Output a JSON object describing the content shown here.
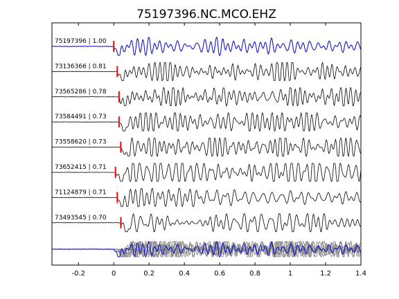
{
  "chart_data": {
    "type": "line",
    "title": "75197396.NC.MCO.EHZ",
    "xlabel": "",
    "ylabel": "",
    "xlim": [
      -0.35,
      1.4
    ],
    "xticks": [
      -0.2,
      0,
      0.2,
      0.4,
      0.6,
      0.8,
      1,
      1.2,
      1.4
    ],
    "xtick_labels": [
      "-0.2",
      "0",
      "0.2",
      "0.4",
      "0.6",
      "0.8",
      "1",
      "1.2",
      "1.4"
    ],
    "grid": false,
    "colors": {
      "reference": "#0000cc",
      "trace": "#000000",
      "overlay": "#808080",
      "pick": "#ff0000"
    },
    "traces": [
      {
        "label": "75197396 | 1.00",
        "pick_time": 0.0,
        "reference": true
      },
      {
        "label": "73136366 | 0.81",
        "pick_time": 0.02
      },
      {
        "label": "73565286 | 0.78",
        "pick_time": 0.03
      },
      {
        "label": "73584491 | 0.73",
        "pick_time": 0.03
      },
      {
        "label": "73558620 | 0.73",
        "pick_time": 0.04
      },
      {
        "label": "73652415 | 0.71",
        "pick_time": 0.01
      },
      {
        "label": "71124879 | 0.71",
        "pick_time": 0.02
      },
      {
        "label": "73493545 | 0.70",
        "pick_time": 0.04
      }
    ]
  }
}
